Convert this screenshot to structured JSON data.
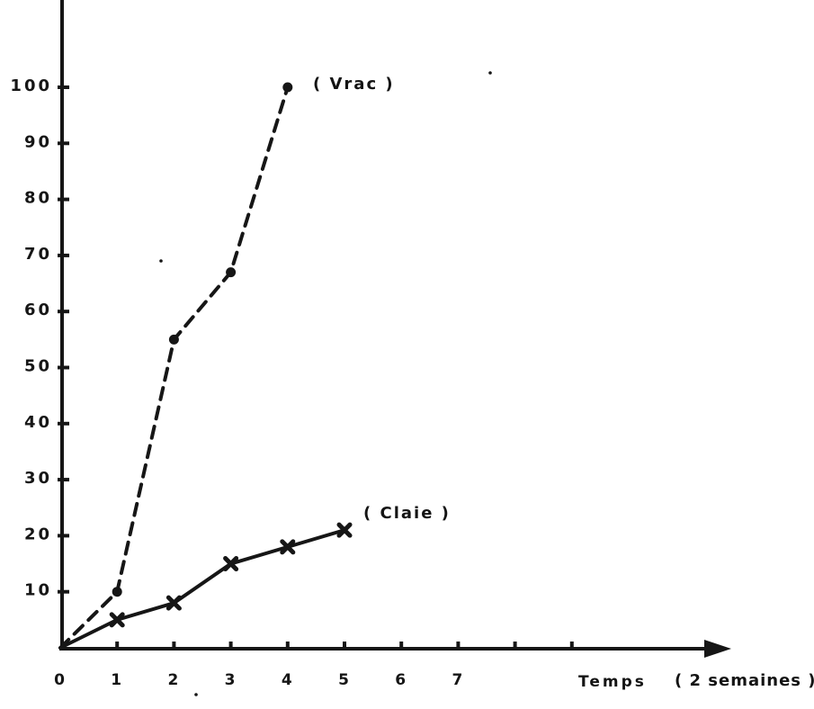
{
  "figure": {
    "background": "#ffffff",
    "ink_color": "#161616",
    "style": "hand-drawn scanned line chart, black ink on white paper"
  },
  "chart_data": {
    "type": "line",
    "title": "",
    "xlabel": "Temps",
    "xlabel_unit": "( 2 semaines )",
    "ylabel": "",
    "xlim": [
      0,
      9.8
    ],
    "ylim": [
      0,
      105
    ],
    "grid": false,
    "legend_position": "inline-annotations",
    "x_tick_labels": [
      0,
      1,
      2,
      3,
      4,
      5,
      6,
      7
    ],
    "x_tick_marks": [
      1,
      2,
      3,
      4,
      5,
      6,
      7,
      8,
      9
    ],
    "y_ticks": [
      10,
      20,
      30,
      40,
      50,
      60,
      70,
      80,
      90,
      100
    ],
    "series": [
      {
        "name": "( Vrac )",
        "line_style": "dashed",
        "marker": "dot",
        "color": "#161616",
        "x": [
          0,
          1,
          2,
          3,
          4
        ],
        "values": [
          0,
          10,
          55,
          67,
          100
        ]
      },
      {
        "name": "( Claie )",
        "line_style": "solid",
        "marker": "x",
        "color": "#161616",
        "x": [
          0,
          1,
          2,
          3,
          4,
          5
        ],
        "values": [
          0,
          5,
          8,
          15,
          18,
          21
        ]
      }
    ]
  }
}
